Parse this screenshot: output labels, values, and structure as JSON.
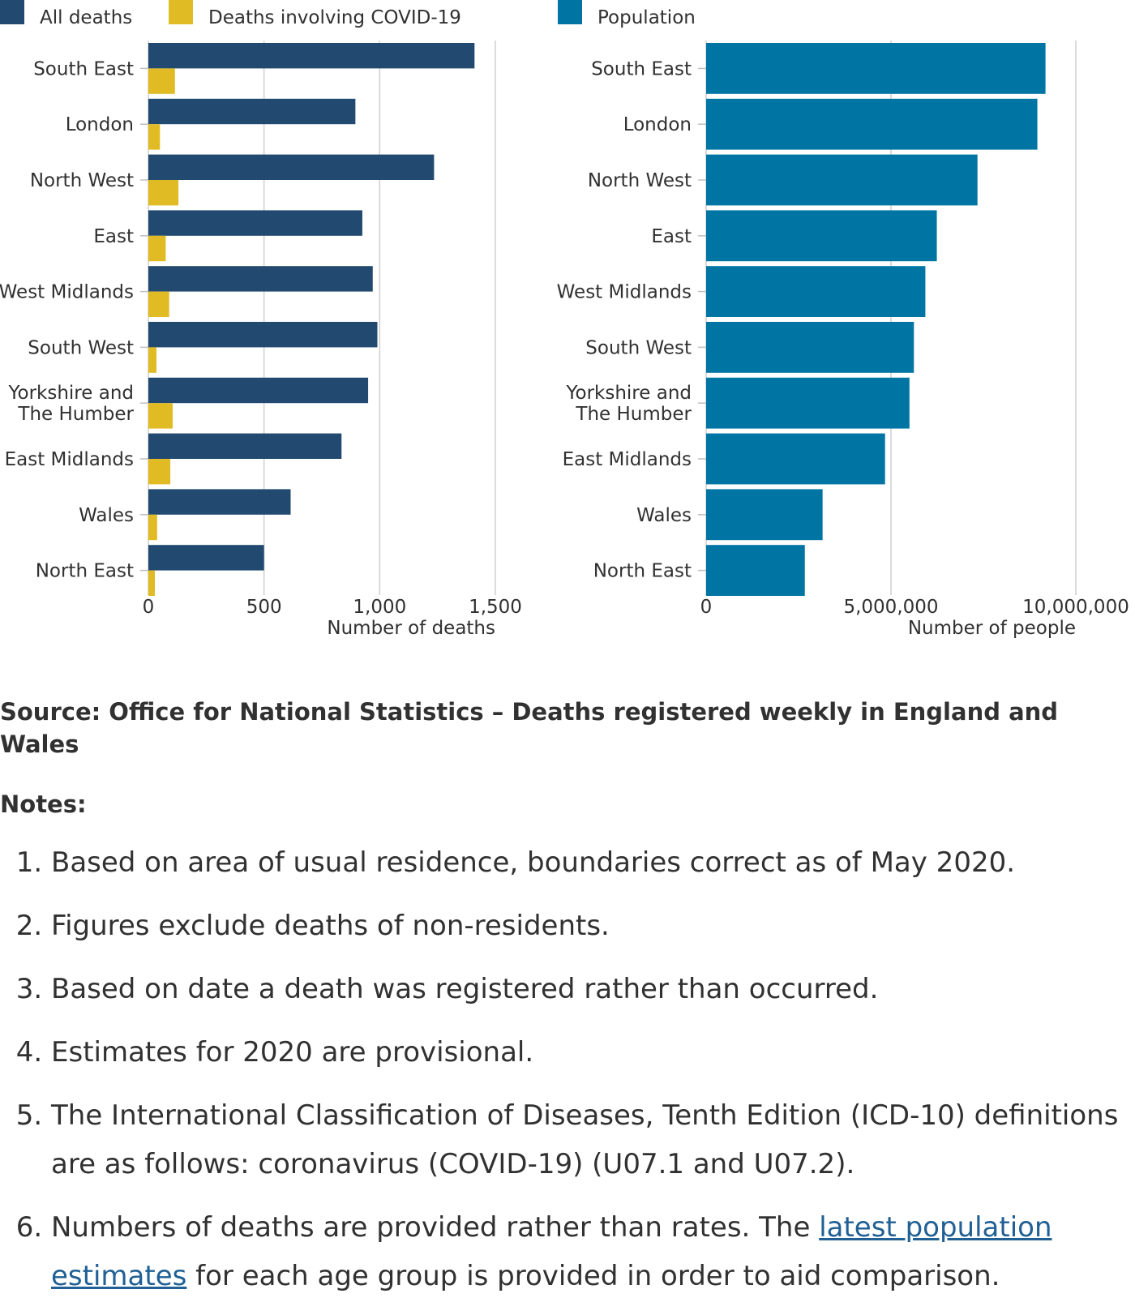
{
  "chart_data": [
    {
      "type": "bar",
      "orientation": "horizontal",
      "categories": [
        "South East",
        "London",
        "North West",
        "East",
        "West Midlands",
        "South West",
        "Yorkshire and The Humber",
        "East Midlands",
        "Wales",
        "North East"
      ],
      "category_lines": [
        [
          "South East"
        ],
        [
          "London"
        ],
        [
          "North West"
        ],
        [
          "East"
        ],
        [
          "West Midlands"
        ],
        [
          "South West"
        ],
        [
          "Yorkshire and",
          "The Humber"
        ],
        [
          "East Midlands"
        ],
        [
          "Wales"
        ],
        [
          "North East"
        ]
      ],
      "series": [
        {
          "name": "All deaths",
          "color": "#22496f",
          "values": [
            1410,
            895,
            1235,
            925,
            970,
            990,
            950,
            835,
            615,
            500
          ]
        },
        {
          "name": "Deaths involving COVID-19",
          "color": "#e1bb24",
          "values": [
            115,
            50,
            130,
            75,
            90,
            35,
            105,
            95,
            38,
            28
          ]
        }
      ],
      "xlim": [
        0,
        1500
      ],
      "xticks": [
        0,
        500,
        1000,
        1500
      ],
      "xtick_labels": [
        "0",
        "500",
        "1,000",
        "1,500"
      ],
      "xlabel": "Number of deaths",
      "grid": true,
      "legend": "top-left"
    },
    {
      "type": "bar",
      "orientation": "horizontal",
      "categories": [
        "South East",
        "London",
        "North West",
        "East",
        "West Midlands",
        "South West",
        "Yorkshire and The Humber",
        "East Midlands",
        "Wales",
        "North East"
      ],
      "category_lines": [
        [
          "South East"
        ],
        [
          "London"
        ],
        [
          "North West"
        ],
        [
          "East"
        ],
        [
          "West Midlands"
        ],
        [
          "South West"
        ],
        [
          "Yorkshire and",
          "The Humber"
        ],
        [
          "East Midlands"
        ],
        [
          "Wales"
        ],
        [
          "North East"
        ]
      ],
      "series": [
        {
          "name": "Population",
          "color": "#0075a3",
          "values": [
            9180000,
            8960000,
            7340000,
            6240000,
            5930000,
            5620000,
            5500000,
            4840000,
            3150000,
            2670000
          ]
        }
      ],
      "xlim": [
        0,
        10000000
      ],
      "xticks": [
        0,
        5000000,
        10000000
      ],
      "xtick_labels": [
        "0",
        "5,000,000",
        "10,000,000"
      ],
      "xlabel": "Number of people",
      "grid": true,
      "legend": "top-left"
    }
  ],
  "source": "Source: Office for National Statistics – Deaths registered weekly in England and Wales",
  "notes_heading": "Notes:",
  "notes": [
    {
      "text": "Based on area of usual residence, boundaries correct as of May 2020."
    },
    {
      "text": "Figures exclude deaths of non-residents."
    },
    {
      "text": "Based on date a death was registered rather than occurred."
    },
    {
      "text": "Estimates for 2020 are provisional."
    },
    {
      "text": "The International Classification of Diseases, Tenth Edition (ICD-10) definitions are as follows: coronavirus (COVID-19) (U07.1 and U07.2)."
    },
    {
      "text_before": "Numbers of deaths are provided rather than rates. The ",
      "link": "latest population estimates",
      "text_after": " for each age group is provided in order to aid comparison."
    }
  ]
}
